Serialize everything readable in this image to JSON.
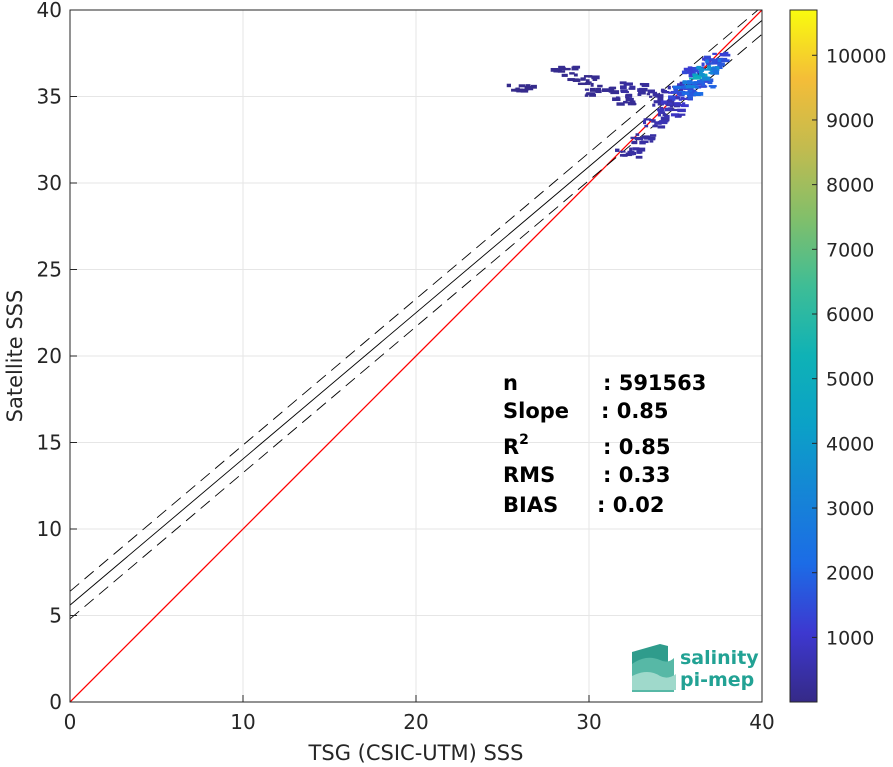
{
  "chart_data": {
    "type": "heatmap",
    "title": "",
    "xlabel": "TSG (CSIC-UTM) SSS",
    "ylabel": "Satellite SSS",
    "xlim": [
      0,
      40
    ],
    "ylim": [
      0,
      40
    ],
    "xticks": [
      0,
      10,
      20,
      30,
      40
    ],
    "yticks": [
      0,
      5,
      10,
      15,
      20,
      25,
      30,
      35,
      40
    ],
    "grid": true,
    "lines": [
      {
        "name": "1:1",
        "color": "#ff0000",
        "style": "solid",
        "x": [
          0,
          40
        ],
        "y": [
          0,
          40
        ]
      },
      {
        "name": "fit",
        "color": "#000000",
        "style": "solid",
        "x": [
          0,
          40
        ],
        "y": [
          5.6,
          39.4
        ]
      },
      {
        "name": "fit+",
        "color": "#000000",
        "style": "dashed",
        "x": [
          0,
          40
        ],
        "y": [
          6.4,
          40.2
        ]
      },
      {
        "name": "fit-",
        "color": "#000000",
        "style": "dashed",
        "x": [
          0,
          40
        ],
        "y": [
          4.8,
          38.6
        ]
      }
    ],
    "density": [
      {
        "x": 36.2,
        "y": 36.2,
        "count": 5500
      },
      {
        "x": 36.6,
        "y": 36.6,
        "count": 4200
      },
      {
        "x": 35.8,
        "y": 35.8,
        "count": 3800
      },
      {
        "x": 37.0,
        "y": 37.0,
        "count": 2600
      },
      {
        "x": 35.5,
        "y": 35.4,
        "count": 2400
      },
      {
        "x": 35.2,
        "y": 35.2,
        "count": 1800
      },
      {
        "x": 36.0,
        "y": 36.5,
        "count": 2000
      },
      {
        "x": 36.4,
        "y": 35.8,
        "count": 2200
      },
      {
        "x": 37.2,
        "y": 37.4,
        "count": 1500
      },
      {
        "x": 34.8,
        "y": 34.8,
        "count": 1200
      },
      {
        "x": 34.5,
        "y": 34.2,
        "count": 900
      },
      {
        "x": 35.0,
        "y": 35.6,
        "count": 1000
      },
      {
        "x": 33.8,
        "y": 33.6,
        "count": 700
      },
      {
        "x": 33.0,
        "y": 32.6,
        "count": 500
      },
      {
        "x": 32.2,
        "y": 31.8,
        "count": 500
      },
      {
        "x": 34.2,
        "y": 34.6,
        "count": 600
      },
      {
        "x": 33.5,
        "y": 35.2,
        "count": 400
      },
      {
        "x": 32.5,
        "y": 35.6,
        "count": 400
      },
      {
        "x": 31.8,
        "y": 34.9,
        "count": 300
      },
      {
        "x": 30.5,
        "y": 35.4,
        "count": 200
      },
      {
        "x": 29.5,
        "y": 36.0,
        "count": 150
      },
      {
        "x": 28.5,
        "y": 36.5,
        "count": 150
      },
      {
        "x": 26.0,
        "y": 35.5,
        "count": 100
      }
    ],
    "colorbar": {
      "min": 1,
      "max": 10700,
      "ticks": [
        1000,
        2000,
        3000,
        4000,
        5000,
        6000,
        7000,
        8000,
        9000,
        10000
      ],
      "colormap": "parula"
    },
    "stats": [
      {
        "label": "n",
        "value": ": 591563"
      },
      {
        "label": "Slope",
        "value": ": 0.85"
      },
      {
        "label": "R2",
        "value": ": 0.85"
      },
      {
        "label": "RMS",
        "value": ": 0.33"
      },
      {
        "label": "BIAS",
        "value": ": 0.02"
      }
    ]
  },
  "logo": {
    "line1": "salinity",
    "line2": "pi-mep"
  },
  "colors": {
    "one_to_one": "#ff0000",
    "fit": "#000000",
    "grid": "#e6e6e6",
    "logo": "#22a294"
  }
}
